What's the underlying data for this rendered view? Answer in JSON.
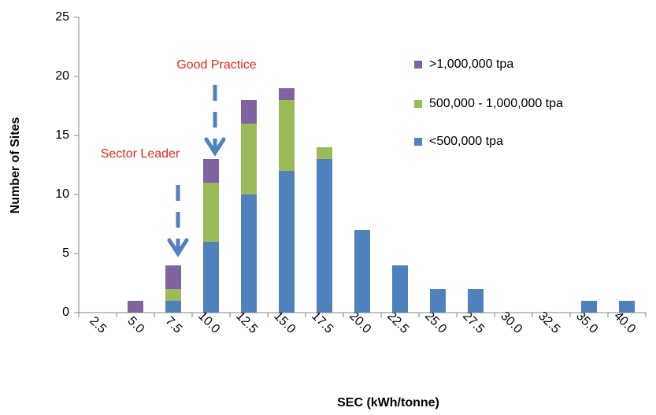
{
  "chart_data": {
    "type": "bar",
    "stacked": true,
    "x_label": "SEC (kWh/tonne)",
    "y_label": "Number of Sites",
    "categories": [
      "2.5",
      "5.0",
      "7.5",
      "10.0",
      "12.5",
      "15.0",
      "17.5",
      "20.0",
      "22.5",
      "25.0",
      "27.5",
      "30.0",
      "32.5",
      "35.0",
      "40.0"
    ],
    "series": [
      {
        "name": "<500,000 tpa",
        "color": "#4f81bd",
        "values": [
          0,
          0,
          1,
          6,
          10,
          12,
          13,
          7,
          4,
          2,
          2,
          0,
          0,
          1,
          1
        ]
      },
      {
        "name": "500,000 - 1,000,000 tpa",
        "color": "#9bbb59",
        "values": [
          0,
          0,
          1,
          5,
          6,
          6,
          1,
          0,
          0,
          0,
          0,
          0,
          0,
          0,
          0
        ]
      },
      {
        "name": ">1,000,000 tpa",
        "color": "#8064a2",
        "values": [
          0,
          1,
          2,
          2,
          2,
          1,
          0,
          0,
          0,
          0,
          0,
          0,
          0,
          0,
          0
        ]
      }
    ],
    "ylim": [
      0,
      25
    ],
    "yticks": [
      0,
      5,
      10,
      15,
      20,
      25
    ],
    "grid": false,
    "legend": "right",
    "annotations": [
      "Sector Leader",
      "Good Practice"
    ]
  }
}
